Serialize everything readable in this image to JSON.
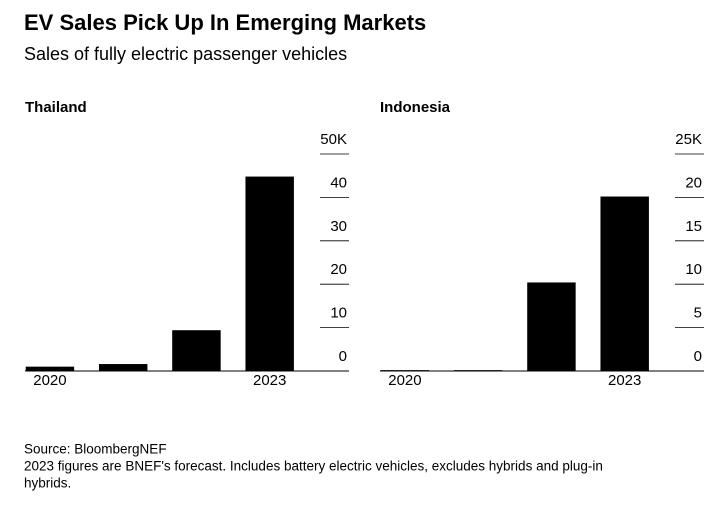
{
  "title": "EV Sales Pick Up In Emerging Markets",
  "subtitle": "Sales of fully electric passenger vehicles",
  "source": "Source: BloombergNEF",
  "note": [
    "2023 figures are BNEF's forecast. Includes battery electric vehicles, excludes hybrids and plug-in",
    "hybrids."
  ],
  "chart_data": [
    {
      "type": "bar",
      "title": "Thailand",
      "categories": [
        "2020",
        null,
        null,
        "2023"
      ],
      "values": [
        1.0,
        1.6,
        9.4,
        44.8
      ],
      "color": "#000000",
      "ylim": [
        0,
        50
      ],
      "yticks": [
        0,
        10,
        20,
        30,
        40,
        {
          "value": 50,
          "label": "50K"
        }
      ]
    },
    {
      "type": "bar",
      "title": "Indonesia",
      "categories": [
        "2020",
        null,
        null,
        "2023"
      ],
      "values": [
        0.1,
        0.1,
        10.2,
        20.1
      ],
      "color": "#000000",
      "ylim": [
        0,
        25
      ],
      "yticks": [
        0,
        5,
        10,
        15,
        20,
        {
          "value": 25,
          "label": "25K"
        }
      ]
    }
  ]
}
